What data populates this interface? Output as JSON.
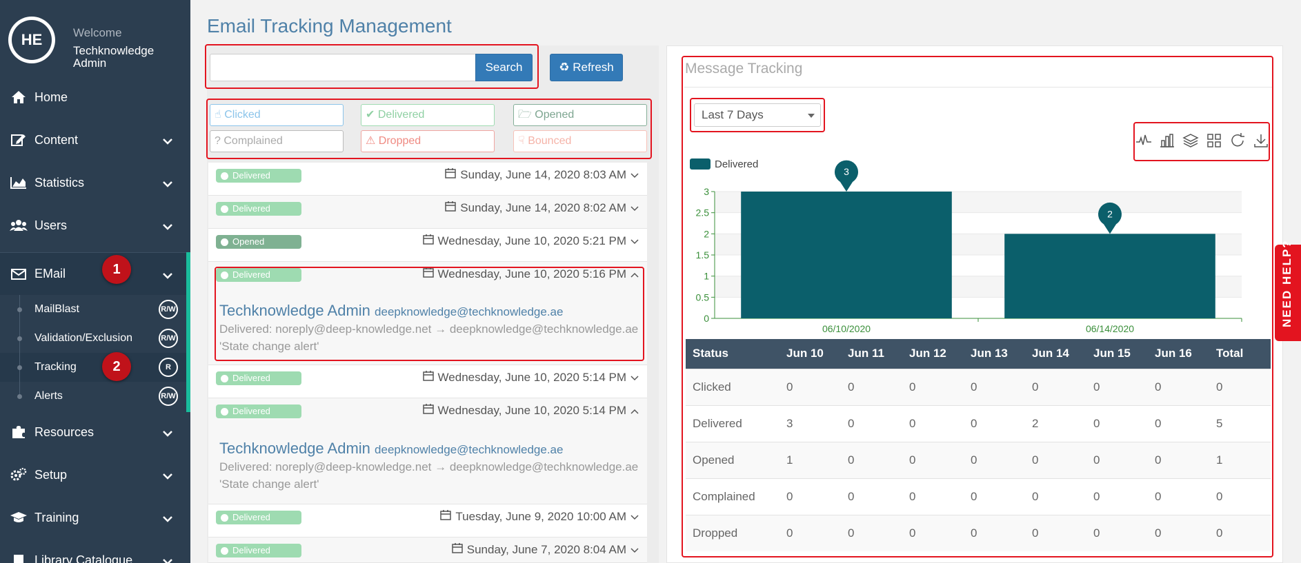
{
  "sidebar": {
    "avatar_initials": "HE",
    "welcome": "Welcome",
    "user_name": "Techknowledge Admin",
    "items": [
      {
        "label": "Home"
      },
      {
        "label": "Content"
      },
      {
        "label": "Statistics"
      },
      {
        "label": "Users"
      },
      {
        "label": "EMail"
      },
      {
        "label": "Resources"
      },
      {
        "label": "Setup"
      },
      {
        "label": "Training"
      },
      {
        "label": "Library Catalogue"
      }
    ],
    "email_subitems": [
      {
        "label": "MailBlast",
        "perm": "R/W"
      },
      {
        "label": "Validation/Exclusion",
        "perm": "R/W"
      },
      {
        "label": "Tracking",
        "perm": "R"
      },
      {
        "label": "Alerts",
        "perm": "R/W"
      }
    ],
    "step_badges": [
      "1",
      "2"
    ]
  },
  "main": {
    "title": "Email Tracking Management",
    "search": {
      "placeholder": "",
      "button": "Search"
    },
    "refresh_button": "Refresh",
    "filters": [
      "Clicked",
      "Delivered",
      "Opened",
      "Complained",
      "Dropped",
      "Bounced"
    ],
    "messages": [
      {
        "status": "Delivered",
        "date": "Sunday, June 14, 2020 8:03 AM"
      },
      {
        "status": "Delivered",
        "date": "Sunday, June 14, 2020 8:02 AM"
      },
      {
        "status": "Opened",
        "date": "Wednesday, June 10, 2020 5:21 PM"
      },
      {
        "status": "Delivered",
        "date": "Wednesday, June 10, 2020 5:16 PM",
        "name": "Techknowledge Admin",
        "email": "deepknowledge@techknowledge.ae",
        "detail": "Delivered: noreply@deep-knowledge.net → deepknowledge@techknowledge.ae",
        "subject": "'State change alert'"
      },
      {
        "status": "Delivered",
        "date": "Wednesday, June 10, 2020 5:14 PM"
      },
      {
        "status": "Delivered",
        "date": "Wednesday, June 10, 2020 5:14 PM",
        "name": "Techknowledge Admin",
        "email": "deepknowledge@techknowledge.ae",
        "detail": "Delivered: noreply@deep-knowledge.net → deepknowledge@techknowledge.ae",
        "subject": "'State change alert'"
      },
      {
        "status": "Delivered",
        "date": "Tuesday, June 9, 2020 10:00 AM"
      },
      {
        "status": "Delivered",
        "date": "Sunday, June 7, 2020 8:04 AM"
      }
    ]
  },
  "tracking": {
    "title": "Message Tracking",
    "range_select": "Last 7 Days",
    "toolbar_icons": [
      "line-chart-icon",
      "bar-chart-icon",
      "stack-icon",
      "grid-icon",
      "refresh-icon",
      "download-icon"
    ],
    "table": {
      "headers": [
        "Status",
        "Jun 10",
        "Jun 11",
        "Jun 12",
        "Jun 13",
        "Jun 14",
        "Jun 15",
        "Jun 16",
        "Total"
      ],
      "rows": [
        [
          "Clicked",
          "0",
          "0",
          "0",
          "0",
          "0",
          "0",
          "0",
          "0"
        ],
        [
          "Delivered",
          "3",
          "0",
          "0",
          "0",
          "2",
          "0",
          "0",
          "5"
        ],
        [
          "Opened",
          "1",
          "0",
          "0",
          "0",
          "0",
          "0",
          "0",
          "1"
        ],
        [
          "Complained",
          "0",
          "0",
          "0",
          "0",
          "0",
          "0",
          "0",
          "0"
        ],
        [
          "Dropped",
          "0",
          "0",
          "0",
          "0",
          "0",
          "0",
          "0",
          "0"
        ]
      ]
    }
  },
  "chart_data": {
    "type": "bar",
    "categories": [
      "06/10/2020",
      "06/14/2020"
    ],
    "series": [
      {
        "name": "Delivered",
        "values": [
          3,
          2
        ],
        "color": "#0b5f6b"
      }
    ],
    "ylim": [
      0,
      3
    ],
    "yticks": [
      "0",
      "0.5",
      "1",
      "1.5",
      "2",
      "2.5",
      "3"
    ],
    "grid": true,
    "legend": "top-left"
  },
  "need_help": "NEED HELP?"
}
